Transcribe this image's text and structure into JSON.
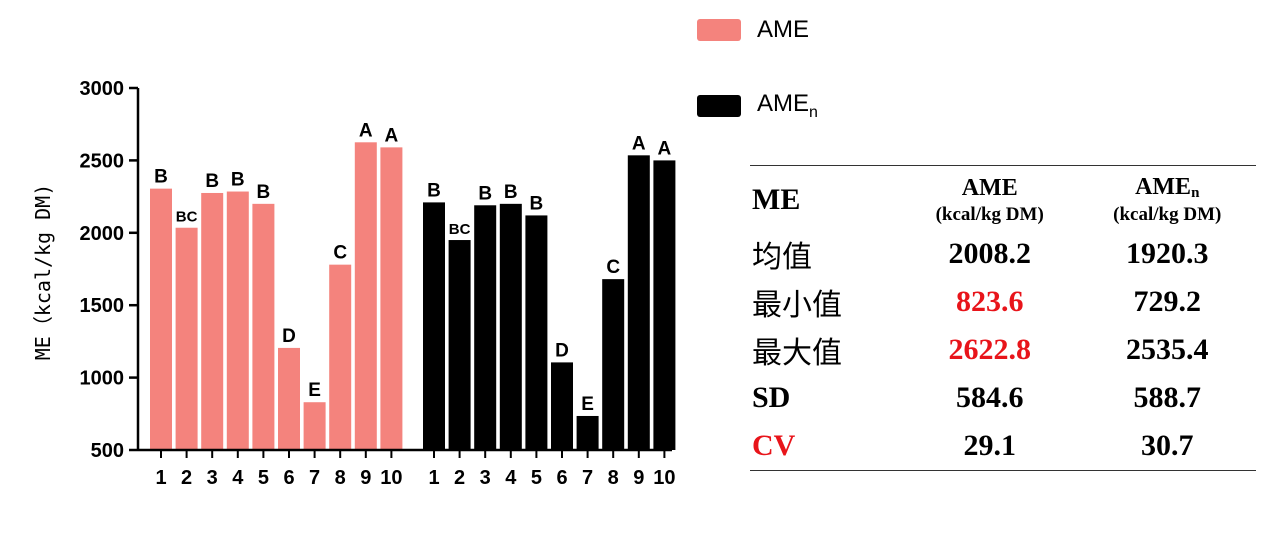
{
  "chart_data": {
    "type": "bar",
    "ylabel": "ME（kcal/kg DM)",
    "ylim": [
      500,
      3000
    ],
    "yticks": [
      500,
      1000,
      1500,
      2000,
      2500,
      3000
    ],
    "groups": [
      {
        "legend": "AME",
        "color": "#f4837d",
        "categories": [
          "1",
          "2",
          "3",
          "4",
          "5",
          "6",
          "7",
          "8",
          "9",
          "10"
        ],
        "values": [
          2305,
          2035,
          2275,
          2285,
          2200,
          1205,
          830,
          1780,
          2625,
          2590
        ],
        "letters": [
          "B",
          "BC",
          "B",
          "B",
          "B",
          "D",
          "E",
          "C",
          "A",
          "A"
        ]
      },
      {
        "legend": "AME",
        "legend_sub": "n",
        "color": "#000000",
        "categories": [
          "1",
          "2",
          "3",
          "4",
          "5",
          "6",
          "7",
          "8",
          "9",
          "10"
        ],
        "values": [
          2210,
          1950,
          2190,
          2200,
          2120,
          1105,
          735,
          1680,
          2535,
          2500
        ],
        "letters": [
          "B",
          "BC",
          "B",
          "B",
          "B",
          "D",
          "E",
          "C",
          "A",
          "A"
        ]
      }
    ]
  },
  "table": {
    "corner": "ME",
    "columns": [
      {
        "name": "AME",
        "sub": "",
        "unit": "(kcal/kg DM)"
      },
      {
        "name": "AME",
        "sub": "n",
        "unit": "(kcal/kg DM)"
      }
    ],
    "rows": [
      {
        "label": "均值",
        "ame": "2008.2",
        "amen": "1920.3"
      },
      {
        "label": "最小值",
        "ame": "823.6",
        "amen": "729.2"
      },
      {
        "label": "最大值",
        "ame": "2622.8",
        "amen": "2535.4"
      },
      {
        "label": "SD",
        "ame": "584.6",
        "amen": "588.7"
      },
      {
        "label": "CV",
        "ame": "29.1",
        "amen": "30.7"
      }
    ],
    "highlight_color": "#e8141a"
  }
}
